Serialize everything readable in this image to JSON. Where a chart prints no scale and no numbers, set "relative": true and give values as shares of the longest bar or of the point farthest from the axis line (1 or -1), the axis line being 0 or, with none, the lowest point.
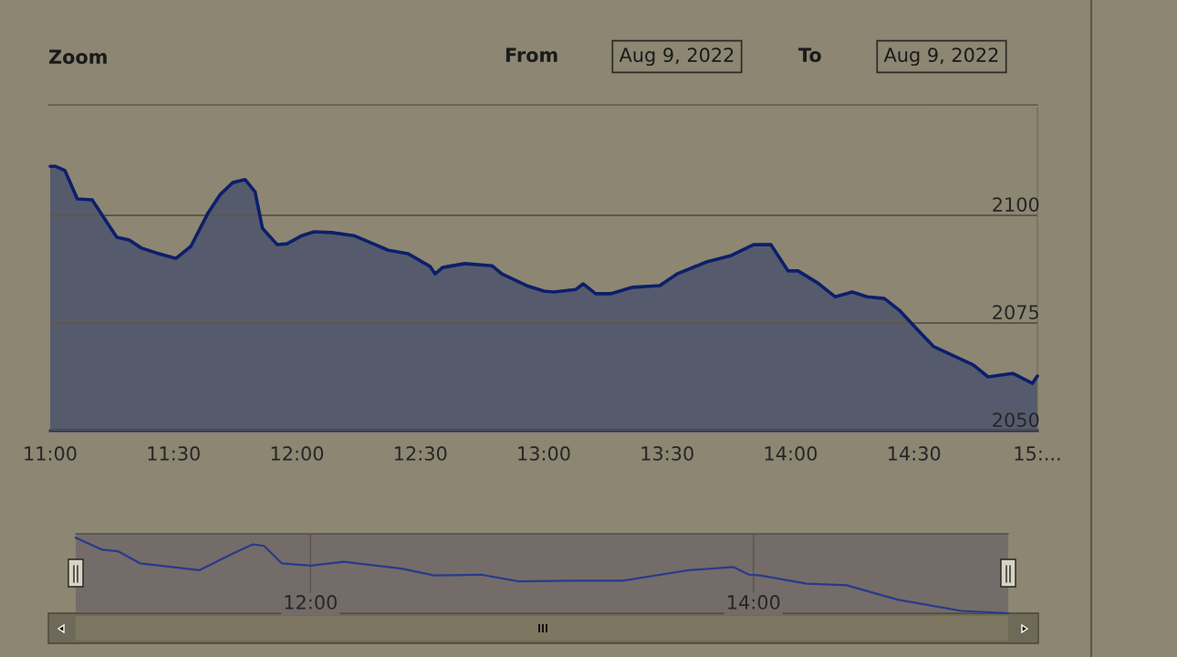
{
  "chart_data": [
    {
      "type": "area",
      "annotations": [
        "Zoom",
        "From",
        "Aug 9, 2022",
        "To",
        "Aug 9, 2022"
      ],
      "x": [
        11.0,
        11.02,
        11.06,
        11.11,
        11.17,
        11.27,
        11.32,
        11.37,
        11.44,
        11.51,
        11.57,
        11.64,
        11.69,
        11.74,
        11.79,
        11.83,
        11.86,
        11.92,
        11.96,
        12.02,
        12.07,
        12.14,
        12.23,
        12.3,
        12.37,
        12.45,
        12.54,
        12.56,
        12.59,
        12.68,
        12.79,
        12.83,
        12.93,
        13.0,
        13.04,
        13.13,
        13.16,
        13.21,
        13.27,
        13.36,
        13.47,
        13.54,
        13.66,
        13.76,
        13.85,
        13.92,
        13.99,
        14.03,
        14.11,
        14.18,
        14.25,
        14.31,
        14.38,
        14.44,
        14.52,
        14.58,
        14.66,
        14.74,
        14.8,
        14.9,
        14.98,
        15.0
      ],
      "series": [
        {
          "color": "#0d1f6b",
          "values": [
            2111.4,
            2111.4,
            2110.4,
            2103.8,
            2103.6,
            2094.9,
            2094.3,
            2092.4,
            2091.1,
            2090.0,
            2092.8,
            2100.6,
            2104.9,
            2107.6,
            2108.3,
            2105.5,
            2097.0,
            2093.2,
            2093.4,
            2095.3,
            2096.2,
            2096.0,
            2095.3,
            2093.6,
            2091.9,
            2091.1,
            2088.1,
            2086.4,
            2087.9,
            2088.8,
            2088.3,
            2086.4,
            2083.7,
            2082.4,
            2082.2,
            2082.8,
            2084.1,
            2081.8,
            2081.8,
            2083.3,
            2083.7,
            2086.4,
            2089.2,
            2090.7,
            2093.2,
            2093.2,
            2087.1,
            2087.1,
            2084.3,
            2081.1,
            2082.2,
            2081.1,
            2080.7,
            2078.0,
            2073.1,
            2069.5,
            2067.4,
            2065.3,
            2062.5,
            2063.3,
            2061.0,
            2062.7
          ]
        }
      ],
      "xlim": [
        11.0,
        15.0
      ],
      "ylim": [
        2050,
        2125
      ],
      "xticks": [
        {
          "value": 11.0,
          "label": "11:00"
        },
        {
          "value": 11.5,
          "label": "11:30"
        },
        {
          "value": 12.0,
          "label": "12:00"
        },
        {
          "value": 12.5,
          "label": "12:30"
        },
        {
          "value": 13.0,
          "label": "13:00"
        },
        {
          "value": 13.5,
          "label": "13:30"
        },
        {
          "value": 14.0,
          "label": "14:00"
        },
        {
          "value": 14.5,
          "label": "14:30"
        },
        {
          "value": 15.0,
          "label": "15:..."
        }
      ],
      "yticks": [
        2050,
        2075,
        2100
      ],
      "grid": "y",
      "legend": false
    },
    {
      "type": "line",
      "relative": true,
      "x": [
        10.94,
        11.06,
        11.13,
        11.23,
        11.5,
        11.65,
        11.74,
        11.79,
        11.87,
        12.0,
        12.15,
        12.41,
        12.56,
        12.77,
        12.94,
        13.18,
        13.41,
        13.71,
        13.91,
        13.98,
        14.03,
        14.24,
        14.42,
        14.65,
        14.94,
        15.15
      ],
      "series": [
        {
          "color": "#2a3a8a",
          "values": [
            1.0,
            0.84,
            0.82,
            0.66,
            0.57,
            0.79,
            0.91,
            0.89,
            0.66,
            0.63,
            0.68,
            0.59,
            0.5,
            0.51,
            0.42,
            0.43,
            0.43,
            0.57,
            0.61,
            0.51,
            0.5,
            0.39,
            0.37,
            0.18,
            0.03,
            0.0
          ]
        }
      ],
      "xlim": [
        10.94,
        15.15
      ],
      "xticks": [
        {
          "value": 12.0,
          "label": "12:00"
        },
        {
          "value": 14.0,
          "label": "14:00"
        }
      ],
      "grid": "x",
      "tick_labels": "x",
      "legend": false
    }
  ]
}
